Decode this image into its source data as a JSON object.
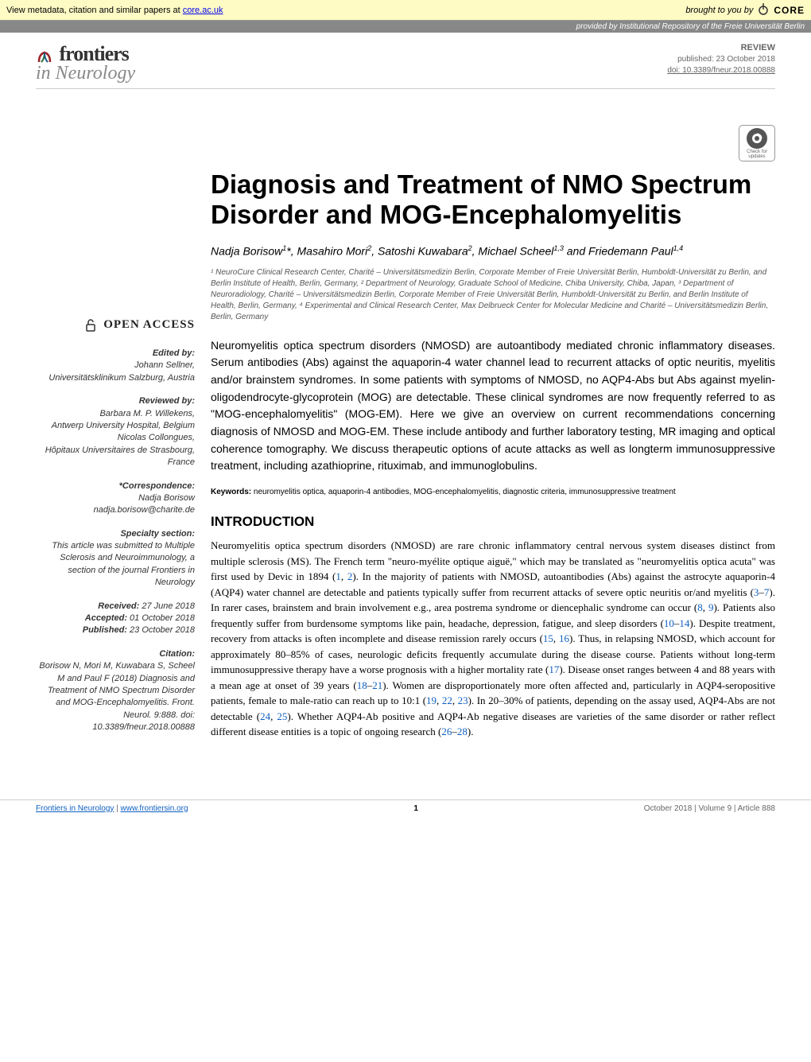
{
  "metabar": {
    "left_text": "View metadata, citation and similar papers at ",
    "link_text": "core.ac.uk",
    "brought": "brought to you by ",
    "core": "CORE"
  },
  "provided_bar": "provided by Institutional Repository of the Freie Universität Berlin",
  "journal": {
    "name_top": "frontiers",
    "name_bottom": "in Neurology"
  },
  "pubinfo": {
    "type": "REVIEW",
    "published": "published: 23 October 2018",
    "doi": "doi: 10.3389/fneur.2018.00888"
  },
  "check_updates": {
    "line1": "Check for",
    "line2": "updates"
  },
  "title": "Diagnosis and Treatment of NMO Spectrum Disorder and MOG-Encephalomyelitis",
  "authors_html": "Nadja Borisow<sup>1</sup>*, Masahiro Mori<sup>2</sup>, Satoshi Kuwabara<sup>2</sup>, Michael Scheel<sup>1,3</sup> and Friedemann Paul<sup>1,4</sup>",
  "affiliations": "¹ NeuroCure Clinical Research Center, Charité – Universitätsmedizin Berlin, Corporate Member of Freie Universität Berlin, Humboldt-Universität zu Berlin, and Berlin Institute of Health, Berlin, Germany, ² Department of Neurology, Graduate School of Medicine, Chiba University, Chiba, Japan, ³ Department of Neuroradiology, Charité – Universitätsmedizin Berlin, Corporate Member of Freie Universität Berlin, Humboldt-Universität zu Berlin, and Berlin Institute of Health, Berlin, Germany, ⁴ Experimental and Clinical Research Center, Max Delbrueck Center for Molecular Medicine and Charité – Universitätsmedizin Berlin, Berlin, Germany",
  "abstract": "Neuromyelitis optica spectrum disorders (NMOSD) are autoantibody mediated chronic inflammatory diseases. Serum antibodies (Abs) against the aquaporin-4 water channel lead to recurrent attacks of optic neuritis, myelitis and/or brainstem syndromes. In some patients with symptoms of NMOSD, no AQP4-Abs but Abs against myelin-oligodendrocyte-glycoprotein (MOG) are detectable. These clinical syndromes are now frequently referred to as \"MOG-encephalomyelitis\" (MOG-EM). Here we give an overview on current recommendations concerning diagnosis of NMOSD and MOG-EM. These include antibody and further laboratory testing, MR imaging and optical coherence tomography. We discuss therapeutic options of acute attacks as well as longterm immunosuppressive treatment, including azathioprine, rituximab, and immunoglobulins.",
  "keywords": {
    "label": "Keywords:",
    "text": " neuromyelitis optica, aquaporin-4 antibodies, MOG-encephalomyelitis, diagnostic criteria, immunosuppressive treatment"
  },
  "sidebar": {
    "open_access": "OPEN ACCESS",
    "edited_label": "Edited by:",
    "edited_by": "Johann Sellner,",
    "edited_affil": "Universitätsklinikum Salzburg, Austria",
    "reviewed_label": "Reviewed by:",
    "reviewer1": "Barbara M. P. Willekens,",
    "reviewer1_affil": "Antwerp University Hospital, Belgium",
    "reviewer2": "Nicolas Collongues,",
    "reviewer2_affil": "Hôpitaux Universitaires de Strasbourg, France",
    "correspondence_label": "*Correspondence:",
    "correspondence_name": "Nadja Borisow",
    "correspondence_email": "nadja.borisow@charite.de",
    "specialty_label": "Specialty section:",
    "specialty_text": "This article was submitted to Multiple Sclerosis and Neuroimmunology, a section of the journal Frontiers in Neurology",
    "received_label": "Received:",
    "received": " 27 June 2018",
    "accepted_label": "Accepted:",
    "accepted": " 01 October 2018",
    "published_label": "Published:",
    "published": " 23 October 2018",
    "citation_label": "Citation:",
    "citation": "Borisow N, Mori M, Kuwabara S, Scheel M and Paul F (2018) Diagnosis and Treatment of NMO Spectrum Disorder and MOG-Encephalomyelitis. Front. Neurol. 9:888. doi: 10.3389/fneur.2018.00888"
  },
  "section_heading": "INTRODUCTION",
  "body": "Neuromyelitis optica spectrum disorders (NMOSD) are rare chronic inflammatory central nervous system diseases distinct from multiple sclerosis (MS). The French term \"neuro-myélite optique aiguë,\" which may be translated as \"neuromyelitis optica acuta\" was first used by Devic in 1894 (<span class='ref'>1</span>, <span class='ref'>2</span>). In the majority of patients with NMOSD, autoantibodies (Abs) against the astrocyte aquaporin-4 (AQP4) water channel are detectable and patients typically suffer from recurrent attacks of severe optic neuritis or/and myelitis (<span class='ref'>3</span>–<span class='ref'>7</span>). In rarer cases, brainstem and brain involvement e.g., area postrema syndrome or diencephalic syndrome can occur (<span class='ref'>8</span>, <span class='ref'>9</span>). Patients also frequently suffer from burdensome symptoms like pain, headache, depression, fatigue, and sleep disorders (<span class='ref'>10</span>–<span class='ref'>14</span>). Despite treatment, recovery from attacks is often incomplete and disease remission rarely occurs (<span class='ref'>15</span>, <span class='ref'>16</span>). Thus, in relapsing NMOSD, which account for approximately 80–85% of cases, neurologic deficits frequently accumulate during the disease course. Patients without long-term immunosuppressive therapy have a worse prognosis with a higher mortality rate (<span class='ref'>17</span>). Disease onset ranges between 4 and 88 years with a mean age at onset of 39 years (<span class='ref'>18</span>–<span class='ref'>21</span>). Women are disproportionately more often affected and, particularly in AQP4-seropositive patients, female to male-ratio can reach up to 10:1 (<span class='ref'>19</span>, <span class='ref'>22</span>, <span class='ref'>23</span>). In 20–30% of patients, depending on the assay used, AQP4-Abs are not detectable (<span class='ref'>24</span>, <span class='ref'>25</span>). Whether AQP4-Ab positive and AQP4-Ab negative diseases are varieties of the same disorder or rather reflect different disease entities is a topic of ongoing research (<span class='ref'>26</span>–<span class='ref'>28</span>).",
  "footer": {
    "left_label": "Frontiers in Neurology",
    "left_url": "www.frontiersin.org",
    "page": "1",
    "right": "October 2018 | Volume 9 | Article 888"
  },
  "colors": {
    "metabar_bg": "#fffbc5",
    "provided_bg": "#888888",
    "ref_link": "#1060c0",
    "muted": "#666666"
  }
}
